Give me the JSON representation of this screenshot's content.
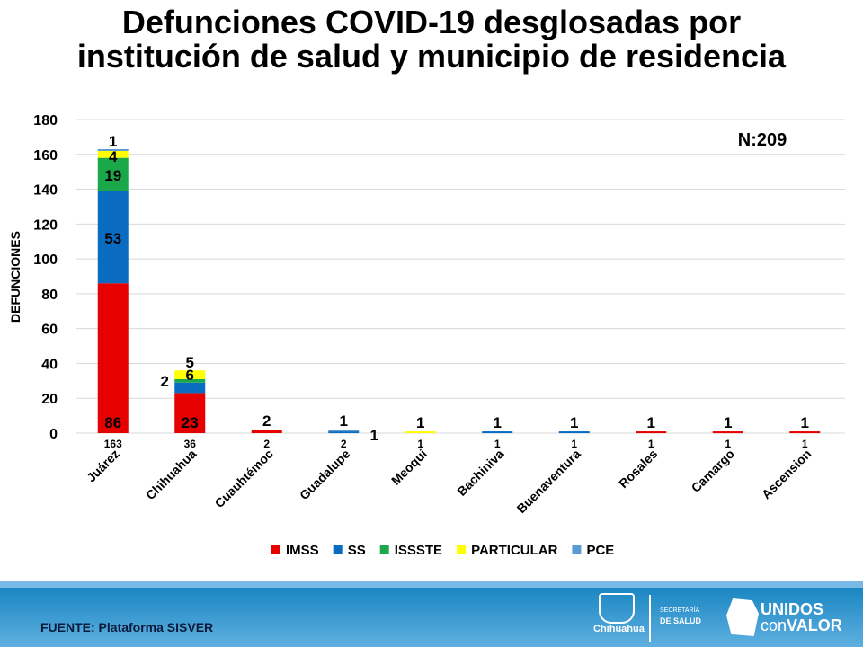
{
  "title_line1": "Defunciones COVID-19 desglosadas por",
  "title_line2": "institución de salud y municipio de residencia",
  "footer": {
    "source": "FUENTE: Plataforma SISVER",
    "logo_state": "Chihuahua",
    "logo_secretaria_1": "SECRETARÍA",
    "logo_secretaria_2": "DE SALUD",
    "logo_unidos_1": "UNIDOS",
    "logo_unidos_2a": "con",
    "logo_unidos_2b": "VALOR"
  },
  "chart_data": {
    "type": "bar",
    "stacked": true,
    "title": "Defunciones COVID-19 desglosadas por institución de salud y municipio de residencia",
    "ylabel": "DEFUNCIONES",
    "xlabel": "",
    "ylim": [
      0,
      180
    ],
    "yticks": [
      0,
      20,
      40,
      60,
      80,
      100,
      120,
      140,
      160,
      180
    ],
    "grid": true,
    "legend_position": "bottom",
    "annotation": "N:209",
    "categories": [
      "Juárez",
      "Chihuahua",
      "Cuauhtémoc",
      "Guadalupe",
      "Meoqui",
      "Bachiniva",
      "Buenaventura",
      "Rosales",
      "Camargo",
      "Ascension"
    ],
    "totals": [
      163,
      36,
      2,
      2,
      1,
      1,
      1,
      1,
      1,
      1
    ],
    "series": [
      {
        "name": "IMSS",
        "color": "#e60000",
        "values": [
          86,
          23,
          2,
          0,
          0,
          0,
          0,
          1,
          1,
          1
        ]
      },
      {
        "name": "SS",
        "color": "#0a6cc0",
        "values": [
          53,
          6,
          0,
          1,
          0,
          1,
          1,
          0,
          0,
          0
        ]
      },
      {
        "name": "ISSSTE",
        "color": "#1aa84a",
        "values": [
          19,
          2,
          0,
          0,
          0,
          0,
          0,
          0,
          0,
          0
        ]
      },
      {
        "name": "PARTICULAR",
        "color": "#ffff00",
        "values": [
          4,
          5,
          0,
          0,
          1,
          0,
          0,
          0,
          0,
          0
        ]
      },
      {
        "name": "PCE",
        "color": "#5b9bd5",
        "values": [
          1,
          0,
          0,
          1,
          0,
          0,
          0,
          0,
          0,
          0
        ]
      }
    ]
  }
}
